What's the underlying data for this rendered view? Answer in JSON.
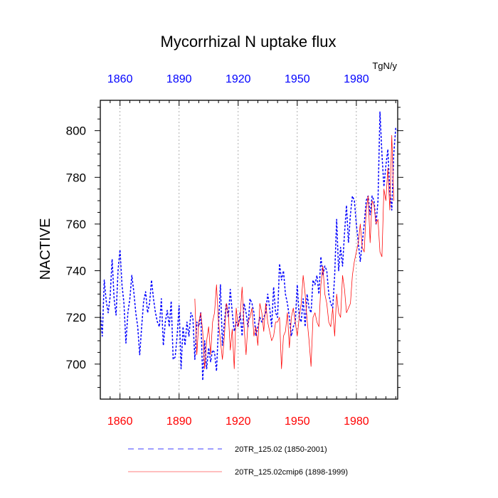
{
  "chart_data": {
    "type": "line",
    "title": "Mycorrhizal N uptake flux",
    "units": "TgN/y",
    "ylabel": "NACTIVE",
    "xlabel": "",
    "xlim": [
      1850,
      2001
    ],
    "ylim": [
      685,
      813
    ],
    "x_ticks": [
      1860,
      1890,
      1920,
      1950,
      1980
    ],
    "y_ticks": [
      700,
      720,
      740,
      760,
      780,
      800
    ],
    "top_tick_color": "#0000ff",
    "bottom_tick_color": "#ff0000",
    "grid": "vertical-dotted",
    "series": [
      {
        "name": "20TR_125.02 (1850-2001)",
        "color": "#0000ff",
        "style": "dashed",
        "start_year": 1850,
        "values": [
          722,
          712,
          736,
          727,
          722,
          729,
          745,
          728,
          721,
          740,
          749,
          734,
          726,
          709,
          722,
          728,
          738,
          731,
          722,
          716,
          704,
          716,
          727,
          731,
          722,
          726,
          736,
          728,
          722,
          718,
          716,
          728,
          708,
          718,
          723,
          716,
          727,
          702,
          703,
          712,
          725,
          698,
          716,
          708,
          718,
          712,
          722,
          720,
          702,
          718,
          716,
          722,
          693,
          710,
          698,
          707,
          701,
          706,
          705,
          697,
          716,
          734,
          708,
          718,
          726,
          720,
          732,
          722,
          714,
          718,
          716,
          722,
          712,
          726,
          722,
          716,
          728,
          726,
          722,
          712,
          716,
          720,
          718,
          720,
          722,
          730,
          724,
          716,
          733,
          722,
          720,
          743,
          736,
          740,
          730,
          726,
          720,
          712,
          716,
          718,
          734,
          720,
          718,
          728,
          716,
          730,
          724,
          722,
          736,
          734,
          738,
          730,
          746,
          738,
          742,
          740,
          730,
          726,
          724,
          738,
          762,
          740,
          750,
          742,
          756,
          768,
          752,
          764,
          772,
          770,
          760,
          752,
          744,
          752,
          760,
          770,
          772,
          764,
          772,
          770,
          760,
          770,
          808,
          790,
          776,
          785,
          792,
          774,
          766,
          790,
          801,
          800
        ]
      },
      {
        "name": "20TR_125.02cmip6 (1898-1999)",
        "color": "#ff0000",
        "style": "solid",
        "start_year": 1898,
        "values": [
          728,
          704,
          718,
          722,
          714,
          698,
          710,
          716,
          704,
          718,
          722,
          734,
          718,
          710,
          702,
          712,
          726,
          722,
          706,
          715,
          698,
          724,
          716,
          720,
          733,
          716,
          704,
          718,
          720,
          724,
          712,
          716,
          708,
          726,
          722,
          714,
          726,
          718,
          714,
          710,
          712,
          718,
          718,
          720,
          698,
          712,
          714,
          722,
          707,
          720,
          724,
          718,
          712,
          720,
          726,
          738,
          730,
          719,
          710,
          699,
          720,
          722,
          718,
          716,
          734,
          742,
          730,
          726,
          718,
          716,
          724,
          712,
          730,
          722,
          720,
          738,
          732,
          722,
          724,
          726,
          738,
          744,
          748,
          752,
          760,
          750,
          748,
          766,
          772,
          752,
          770,
          768,
          760,
          762,
          748,
          746,
          775,
          770,
          784,
          766,
          798,
          770
        ]
      }
    ],
    "legend": [
      {
        "label": "20TR_125.02 (1850-2001)",
        "style": "dashed",
        "color": "#0000ff"
      },
      {
        "label": "20TR_125.02cmip6 (1898-1999)",
        "style": "solid",
        "color": "#ff0000"
      }
    ]
  }
}
